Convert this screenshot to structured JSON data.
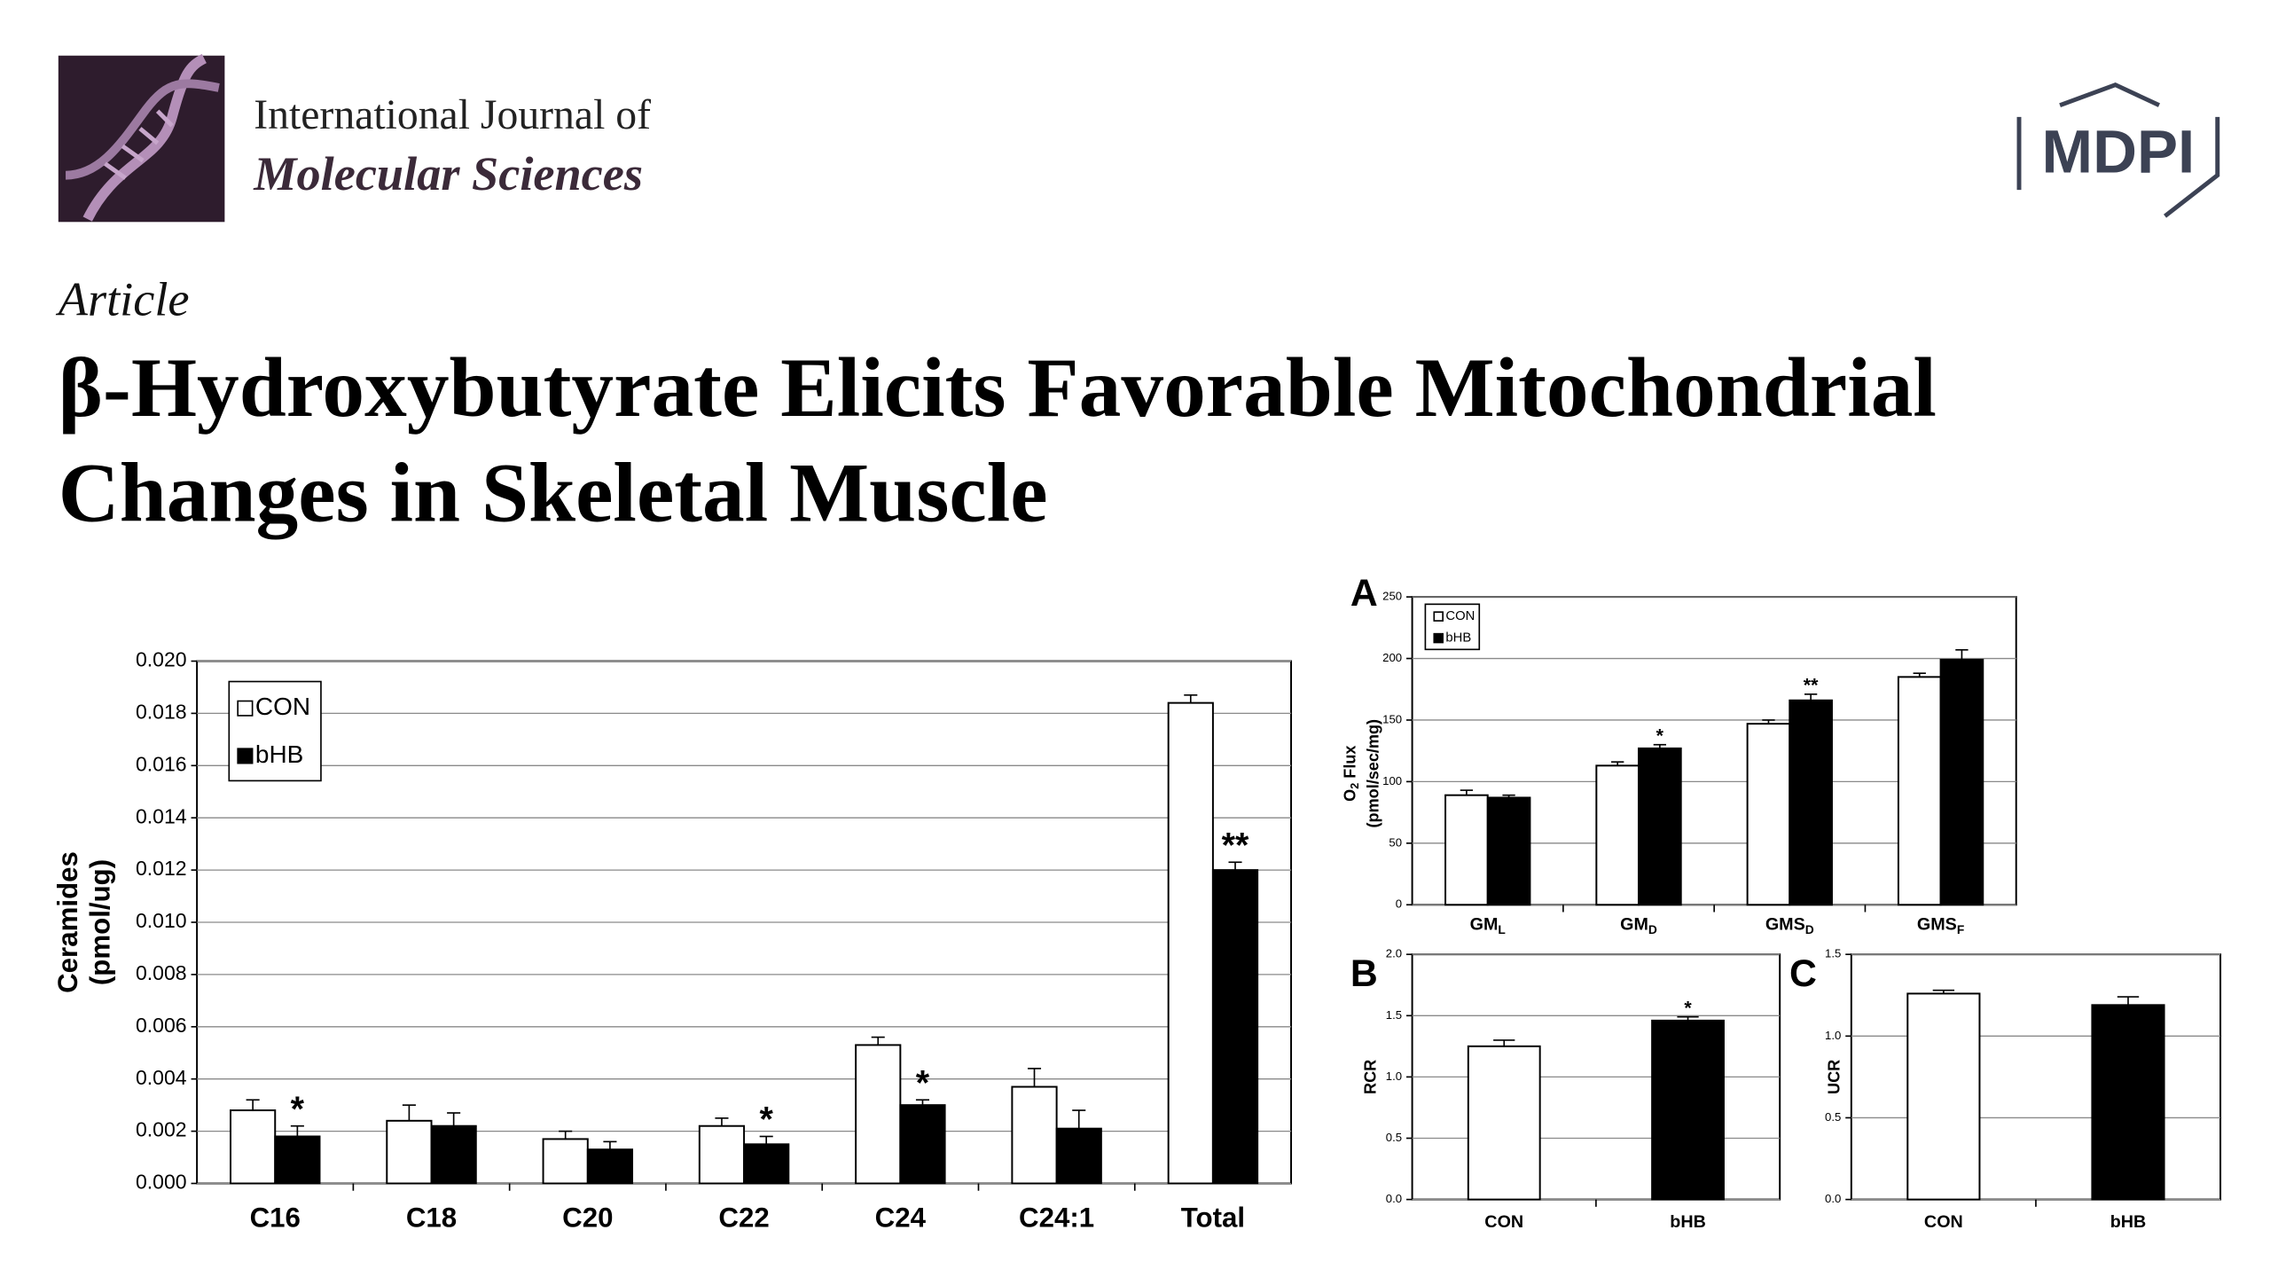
{
  "journal": {
    "line1": "International Journal of",
    "line2": "Molecular Sciences",
    "publisher": "MDPI"
  },
  "article_type": "Article",
  "title_lines": [
    "β-Hydroxybutyrate Elicits Favorable Mitochondrial",
    "Changes in Skeletal Muscle"
  ],
  "chart_data": [
    {
      "type": "bar",
      "ylabel": [
        "Ceramides",
        "(pmol/ug)"
      ],
      "categories": [
        "C16",
        "C18",
        "C20",
        "C22",
        "C24",
        "C24:1",
        "Total"
      ],
      "series": [
        {
          "name": "CON",
          "color": "#ffffff",
          "values": [
            0.0028,
            0.0024,
            0.0017,
            0.0022,
            0.0053,
            0.0037,
            0.0184
          ],
          "errors": [
            0.0004,
            0.0006,
            0.0003,
            0.0003,
            0.0003,
            0.0007,
            0.0003
          ],
          "significance": [
            null,
            null,
            null,
            null,
            null,
            null,
            null
          ]
        },
        {
          "name": "bHB",
          "color": "#000000",
          "values": [
            0.0018,
            0.0022,
            0.0013,
            0.0015,
            0.003,
            0.0021,
            0.012
          ],
          "errors": [
            0.0004,
            0.0005,
            0.0003,
            0.0003,
            0.0002,
            0.0007,
            0.0003
          ],
          "significance": [
            "*",
            null,
            null,
            "*",
            "*",
            null,
            "**"
          ]
        }
      ],
      "ylim": [
        0,
        0.02
      ],
      "yticks": [
        {
          "value": 0,
          "label": "0.000"
        },
        0.002,
        0.004,
        0.006,
        0.008,
        {
          "value": 0.01,
          "label": "0.010"
        },
        0.012,
        0.014,
        0.016,
        0.018,
        {
          "value": 0.02,
          "label": "0.020"
        }
      ],
      "grid": true,
      "legend": "upper left"
    },
    {
      "type": "bar",
      "panel_label": "A",
      "ylabel": {
        "text": "O",
        "sub": "2",
        "rest": " Flux",
        "line2": "(pmol/sec/mg)"
      },
      "categories": [
        "GM",
        "GM",
        "GMS",
        "GMS"
      ],
      "category_subscripts": [
        "L",
        "D",
        "D",
        "F"
      ],
      "series": [
        {
          "name": "CON",
          "color": "#ffffff",
          "values": [
            89,
            113,
            147,
            185
          ],
          "errors": [
            4,
            3,
            3,
            3
          ],
          "significance": [
            null,
            null,
            null,
            null
          ]
        },
        {
          "name": "bHB",
          "color": "#000000",
          "values": [
            87,
            127,
            166,
            199
          ],
          "errors": [
            2,
            3,
            5,
            8
          ],
          "significance": [
            null,
            "*",
            "**",
            null
          ]
        }
      ],
      "ylim": [
        0,
        250
      ],
      "yticks": [
        0,
        50,
        100,
        150,
        200,
        250
      ],
      "grid": true,
      "legend": "upper left"
    },
    {
      "type": "bar",
      "panel_label": "B",
      "ylabel": "RCR",
      "categories": [
        "CON",
        "bHB"
      ],
      "colors": [
        "#ffffff",
        "#000000"
      ],
      "values": [
        1.25,
        1.46
      ],
      "errors": [
        0.05,
        0.03
      ],
      "significance": [
        null,
        "*"
      ],
      "ylim": [
        0,
        2
      ],
      "yticks": [
        {
          "value": 0,
          "label": "0.0"
        },
        0.5,
        {
          "value": 1,
          "label": "1.0"
        },
        1.5,
        {
          "value": 2,
          "label": "2.0"
        }
      ],
      "grid": true
    },
    {
      "type": "bar",
      "panel_label": "C",
      "ylabel": "UCR",
      "categories": [
        "CON",
        "bHB"
      ],
      "colors": [
        "#ffffff",
        "#000000"
      ],
      "values": [
        1.26,
        1.19
      ],
      "errors": [
        0.02,
        0.05
      ],
      "significance": [
        null,
        null
      ],
      "ylim": [
        0,
        1.5
      ],
      "yticks": [
        {
          "value": 0,
          "label": "0.0"
        },
        0.5,
        {
          "value": 1,
          "label": "1.0"
        },
        1.5
      ],
      "grid": true
    }
  ]
}
